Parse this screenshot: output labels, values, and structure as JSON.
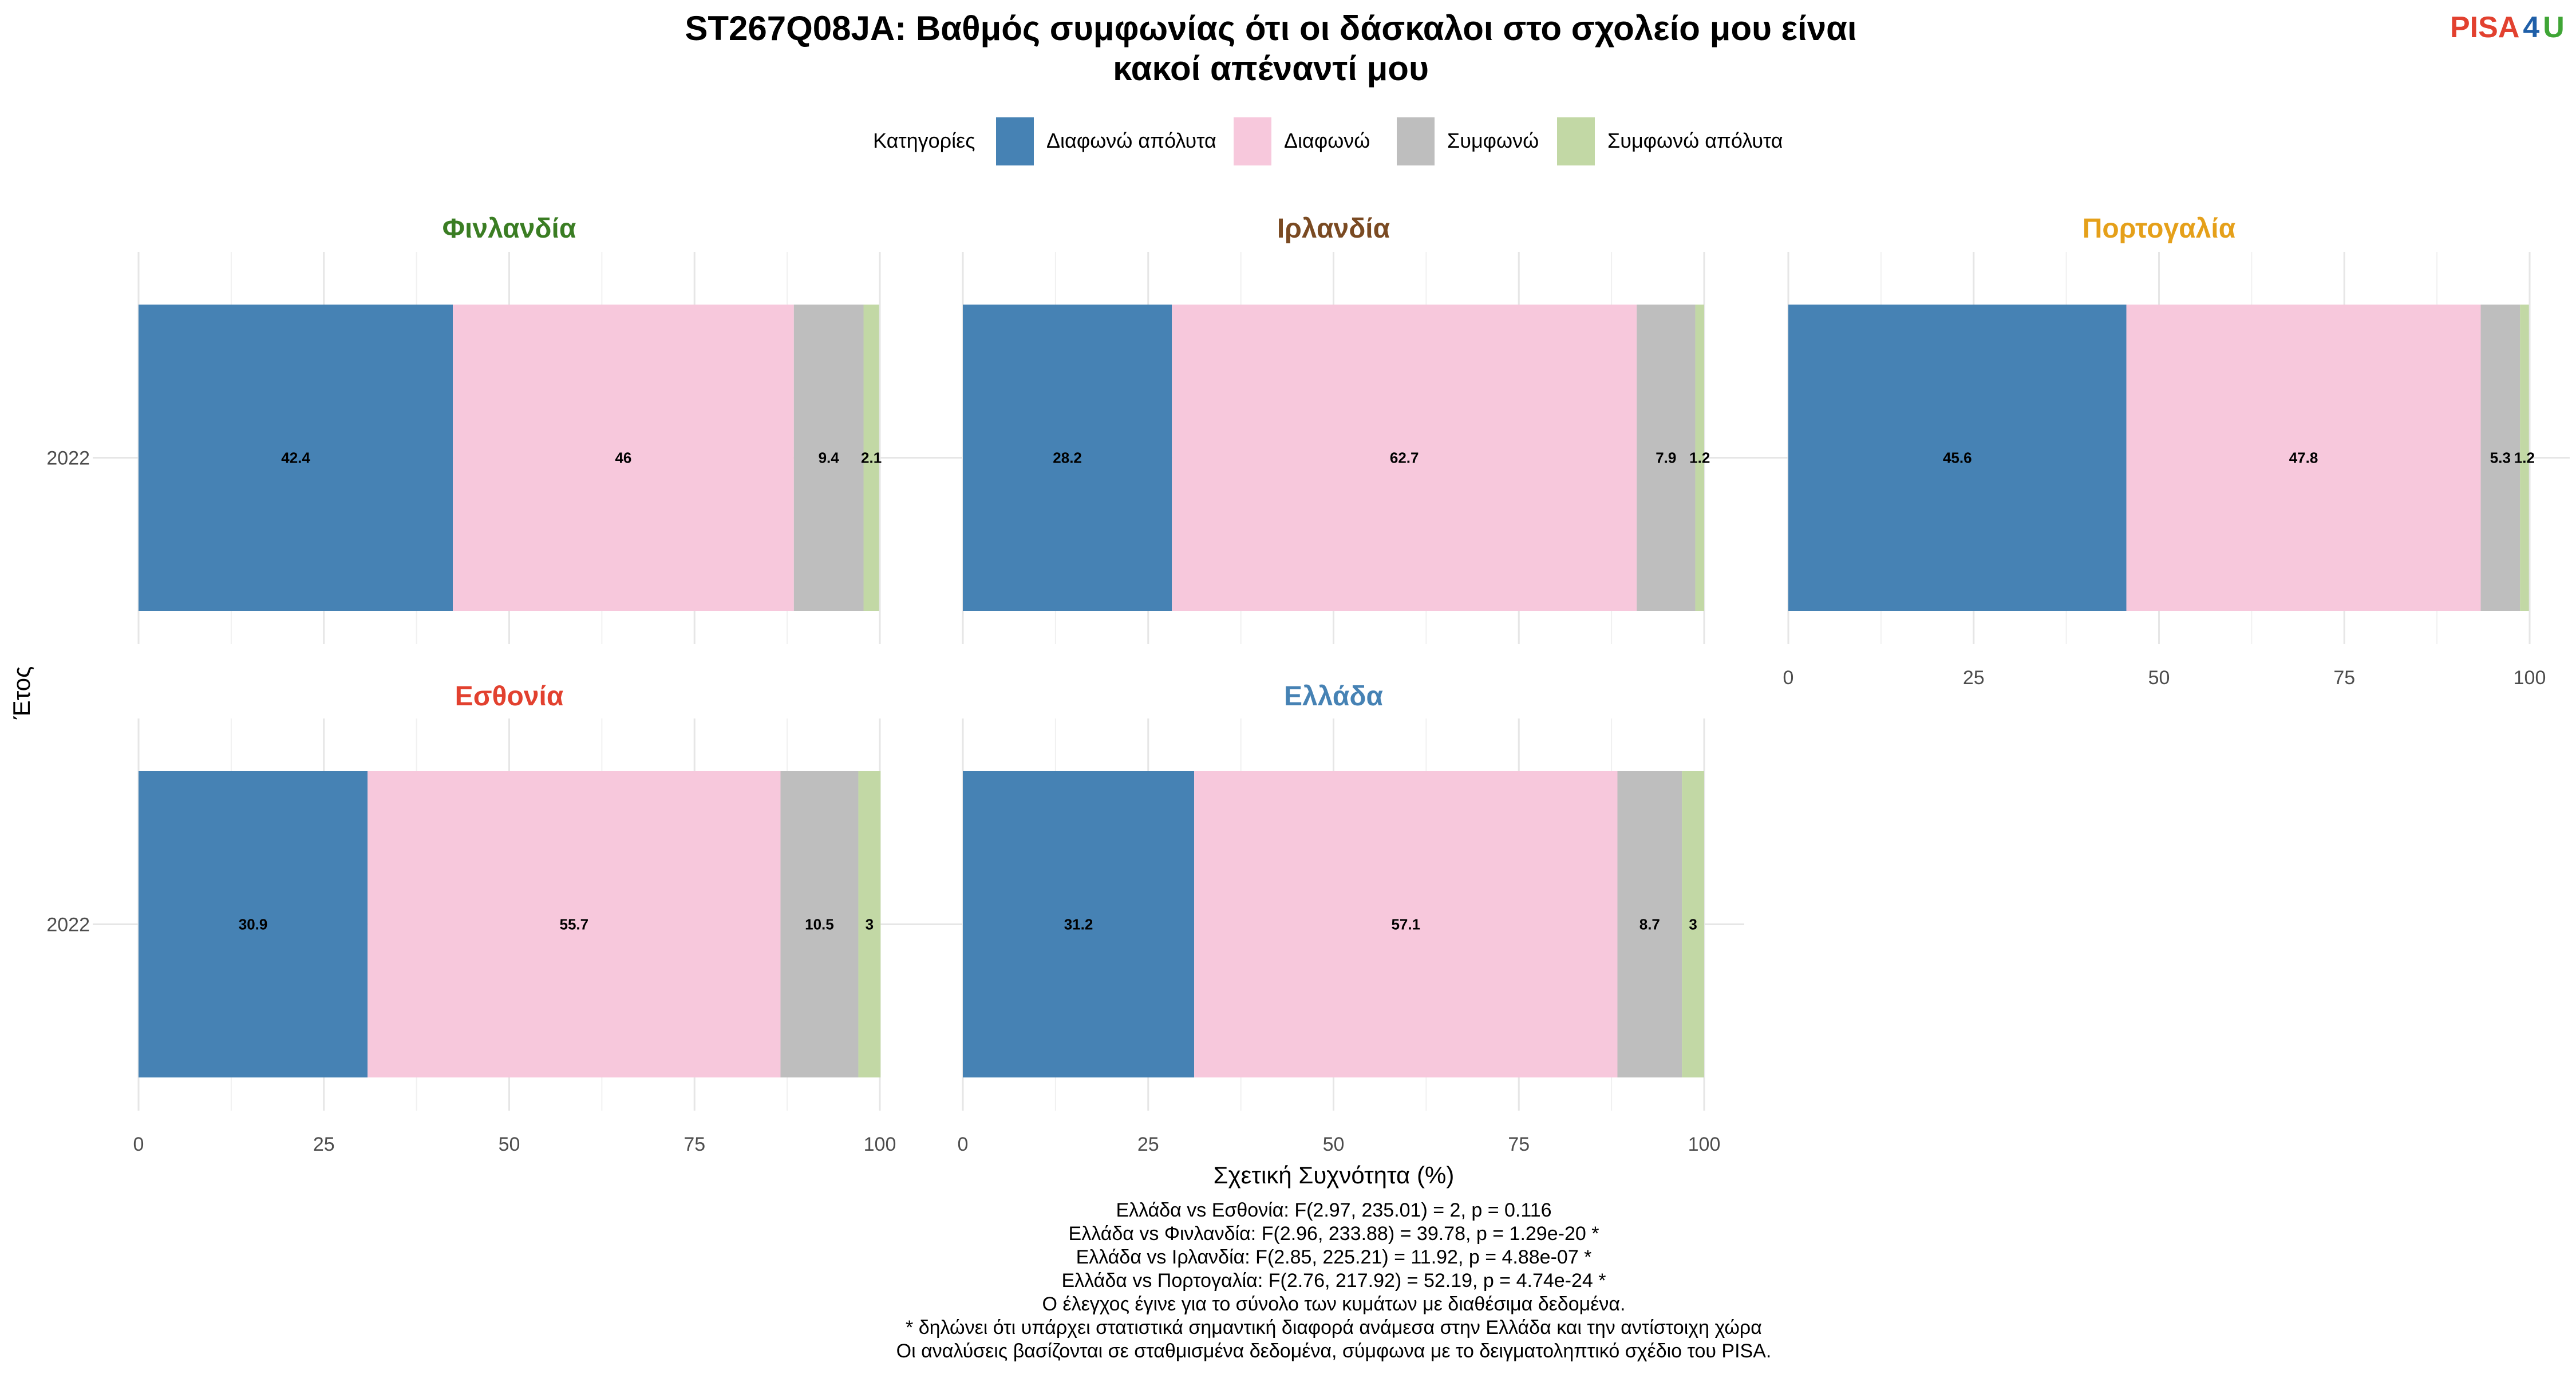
{
  "title_lines": [
    "ST267Q08JA: Βαθμός συμφωνίας ότι οι δάσκαλοι στο σχολείο μου είναι",
    "κακοί απέναντί μου"
  ],
  "logo": {
    "part1": "PISA",
    "part2": "4",
    "part3": "U",
    "color1": "#e2412f",
    "color2": "#1f5fa8",
    "color3": "#3fa535"
  },
  "legend": {
    "title": "Κατηγορίες"
  },
  "chart_data": {
    "type": "bar",
    "orientation": "horizontal",
    "stacked": true,
    "xlabel": "Σχετική Συχνότητα (%)",
    "ylabel": "Έτος",
    "xlim": [
      0,
      100
    ],
    "xticks": [
      "0",
      "25",
      "50",
      "75",
      "100"
    ],
    "grid": true,
    "legend_position": "top",
    "categories": [
      "2022"
    ],
    "series_meta": [
      {
        "name": "Διαφωνώ απόλυτα",
        "color": "#4682b4"
      },
      {
        "name": "Διαφωνώ",
        "color": "#f7c8dc"
      },
      {
        "name": "Συμφωνώ",
        "color": "#bebebe"
      },
      {
        "name": "Συμφωνώ απόλυτα",
        "color": "#c2d8a5"
      }
    ],
    "panels": [
      {
        "name": "Φινλανδία",
        "color": "#3a7d23",
        "year": "2022",
        "values": [
          42.4,
          46,
          9.4,
          2.1
        ],
        "labels": [
          "42.4",
          "46",
          "9.4",
          "2.1"
        ]
      },
      {
        "name": "Ιρλανδία",
        "color": "#7a4a22",
        "year": "2022",
        "values": [
          28.2,
          62.7,
          7.9,
          1.2
        ],
        "labels": [
          "28.2",
          "62.7",
          "7.9",
          "1.2"
        ]
      },
      {
        "name": "Πορτογαλία",
        "color": "#e5a01a",
        "year": "2022",
        "values": [
          45.6,
          47.8,
          5.3,
          1.2
        ],
        "labels": [
          "45.6",
          "47.8",
          "5.3",
          "1.2"
        ]
      },
      {
        "name": "Εσθονία",
        "color": "#e2412f",
        "year": "2022",
        "values": [
          30.9,
          55.7,
          10.5,
          3
        ],
        "labels": [
          "30.9",
          "55.7",
          "10.5",
          "3"
        ]
      },
      {
        "name": "Ελλάδα",
        "color": "#4682b4",
        "year": "2022",
        "values": [
          31.2,
          57.1,
          8.7,
          3
        ],
        "labels": [
          "31.2",
          "57.1",
          "8.7",
          "3"
        ]
      }
    ]
  },
  "footnotes": [
    "Ελλάδα vs Εσθονία: F(2.97, 235.01) = 2, p = 0.116",
    "Ελλάδα vs Φινλανδία: F(2.96, 233.88) = 39.78, p = 1.29e-20 *",
    "Ελλάδα vs Ιρλανδία: F(2.85, 225.21) = 11.92, p = 4.88e-07 *",
    "Ελλάδα vs Πορτογαλία: F(2.76, 217.92) = 52.19, p = 4.74e-24 *",
    "Ο έλεγχος έγινε για το σύνολο των κυμάτων με διαθέσιμα δεδομένα.",
    "* δηλώνει ότι υπάρχει στατιστικά σημαντική διαφορά ανάμεσα στην Ελλάδα και την αντίστοιχη χώρα",
    "Οι αναλύσεις βασίζονται σε σταθμισμένα δεδομένα, σύμφωνα με το δειγματοληπτικό σχέδιο του PISA."
  ]
}
